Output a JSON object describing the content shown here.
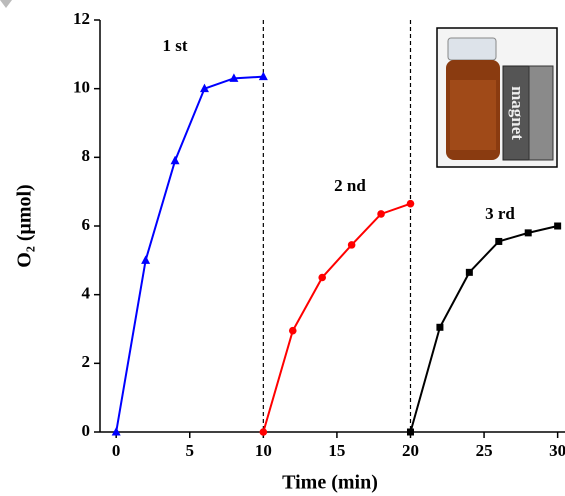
{
  "chart_data": {
    "type": "line",
    "xlabel": "Time (min)",
    "ylabel": "O₂ (μmol)",
    "xlim": [
      -1.1,
      30.5
    ],
    "ylim": [
      0,
      12
    ],
    "xticks": [
      0,
      5,
      10,
      15,
      20,
      25,
      30
    ],
    "yticks": [
      0,
      2,
      4,
      6,
      8,
      10,
      12
    ],
    "vlines": [
      10,
      20
    ],
    "inset_text": "magnet",
    "series": [
      {
        "name": "1 st",
        "color": "#0000ff",
        "marker": "triangle",
        "x": [
          0,
          2,
          4,
          6,
          8,
          10
        ],
        "values": [
          0,
          5.0,
          7.9,
          10.0,
          10.3,
          10.35
        ]
      },
      {
        "name": "2 nd",
        "color": "#ff0000",
        "marker": "circle",
        "x": [
          10,
          12,
          14,
          16,
          18,
          20
        ],
        "values": [
          0,
          2.95,
          4.5,
          5.45,
          6.35,
          6.65
        ]
      },
      {
        "name": "3 rd",
        "color": "#000000",
        "marker": "square",
        "x": [
          20,
          22,
          24,
          26,
          28,
          30
        ],
        "values": [
          0,
          3.05,
          4.65,
          5.55,
          5.8,
          6.0
        ]
      }
    ]
  }
}
